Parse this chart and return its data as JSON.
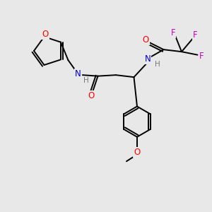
{
  "background_color": "#e8e8e8",
  "bond_color": "#000000",
  "atom_colors": {
    "O": "#ff0000",
    "N": "#0000cd",
    "F": "#cc00cc",
    "C": "#000000",
    "H": "#808080"
  },
  "figsize": [
    3.0,
    3.0
  ],
  "dpi": 100
}
